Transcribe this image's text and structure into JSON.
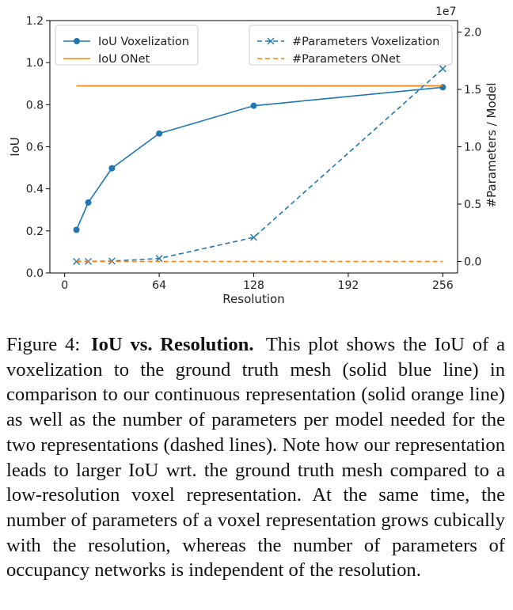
{
  "figure": {
    "label": "Figure 4:",
    "title": "IoU vs. Resolution.",
    "caption_text": "This plot shows the IoU of a voxelization to the ground truth mesh (solid blue line) in comparison to our continuous representation (solid orange line) as well as the number of parameters per model needed for the two representations (dashed lines). Note how our representation leads to larger IoU wrt. the ground truth mesh compared to a low-resolution voxel representation. At the same time, the number of parameters of a voxel representation grows cubically with the resolution, whereas the number of parameters of occupancy networks is independent of the resolution."
  },
  "chart_data": {
    "type": "line",
    "xlabel": "Resolution",
    "ylabel_left": "IoU",
    "ylabel_right": "#Parameters / Model",
    "right_axis_multiplier": "1e7",
    "xlim": [
      -10,
      266
    ],
    "ylim_left": [
      0.0,
      1.2
    ],
    "ylim_right": [
      -0.1,
      2.1
    ],
    "x_ticks": [
      0,
      64,
      128,
      192,
      256
    ],
    "y_ticks_left": [
      "0.0",
      "0.2",
      "0.4",
      "0.6",
      "0.8",
      "1.0",
      "1.2"
    ],
    "y_ticks_right": [
      "0.0",
      "0.5",
      "1.0",
      "1.5",
      "2.0"
    ],
    "series": [
      {
        "name": "IoU Voxelization",
        "axis": "left",
        "style": "solid",
        "marker": "circle",
        "color": "#1f77b4",
        "x": [
          8,
          16,
          32,
          64,
          128,
          256
        ],
        "y": [
          0.205,
          0.335,
          0.498,
          0.663,
          0.795,
          0.883
        ]
      },
      {
        "name": "IoU ONet",
        "axis": "left",
        "style": "solid",
        "marker": "none",
        "color": "#ff7f0e",
        "x": [
          8,
          256
        ],
        "y": [
          0.89,
          0.89
        ]
      },
      {
        "name": "#Parameters Voxelization",
        "axis": "right",
        "style": "dashed",
        "marker": "x",
        "color": "#1f77b4",
        "x": [
          8,
          16,
          32,
          64,
          128,
          256
        ],
        "y": [
          5e-05,
          0.0004,
          0.0033,
          0.026,
          0.21,
          1.68
        ]
      },
      {
        "name": "#Parameters ONet",
        "axis": "right",
        "style": "dashed",
        "marker": "none",
        "color": "#ff7f0e",
        "x": [
          8,
          256
        ],
        "y": [
          0.0,
          0.0
        ]
      }
    ],
    "legend_left_position": "upper-left",
    "legend_right_position": "upper-right",
    "grid": false
  }
}
